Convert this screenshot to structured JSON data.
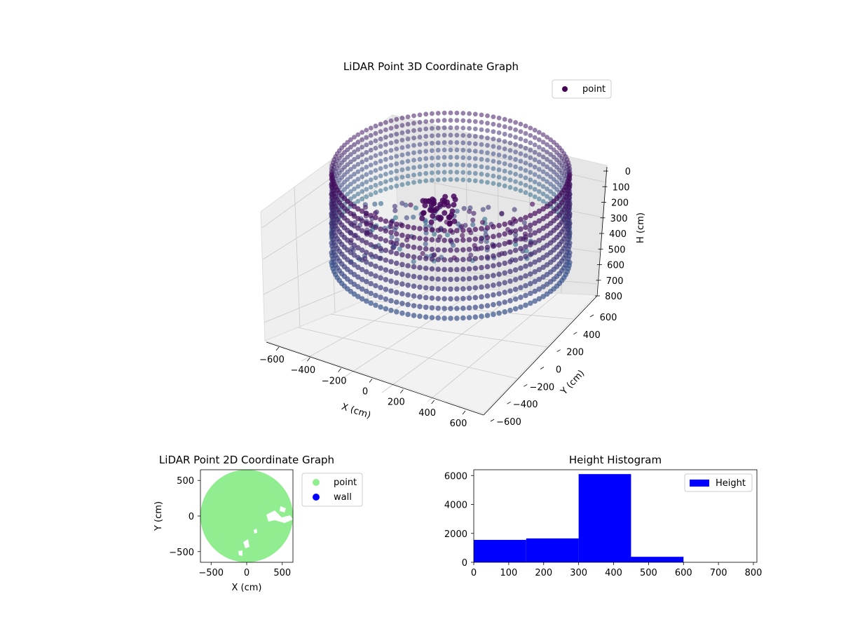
{
  "chart_data": [
    {
      "type": "scatter",
      "projection": "3d",
      "title": "LiDAR Point 3D Coordinate Graph",
      "xlabel": "X (cm)",
      "ylabel": "Y (cm)",
      "zlabel": "H (cm)",
      "xlim": [
        -600,
        600
      ],
      "ylim": [
        -600,
        600
      ],
      "zlim": [
        800,
        0
      ],
      "xticks": [
        "−600",
        "−400",
        "−200",
        "0",
        "200",
        "400",
        "600"
      ],
      "yticks": [
        "−600",
        "−400",
        "−200",
        "0",
        "200",
        "400",
        "600"
      ],
      "zticks": [
        "0",
        "100",
        "200",
        "300",
        "400",
        "500",
        "600",
        "700",
        "800"
      ],
      "legend": {
        "entries": [
          {
            "label": "point",
            "color": "#440154"
          }
        ],
        "placement": "upper-right"
      },
      "colormap": "viridis",
      "grid": true
    },
    {
      "type": "scatter",
      "title": "LiDAR Point 2D Coordinate Graph",
      "xlabel": "X (cm)",
      "ylabel": "Y (cm)",
      "xlim": [
        -650,
        650
      ],
      "ylim": [
        -650,
        650
      ],
      "xticks": [
        "−500",
        "0",
        "500"
      ],
      "yticks": [
        "−500",
        "0",
        "500"
      ],
      "series": [
        {
          "name": "point",
          "color": "#90ee90",
          "shape": "disc",
          "center": [
            0,
            0
          ],
          "radius": 650
        },
        {
          "name": "wall",
          "color": "#0000ff",
          "points": []
        }
      ],
      "legend_placement": "outside-right"
    },
    {
      "type": "bar",
      "title": "Height Histogram",
      "xlim": [
        0,
        810
      ],
      "ylim": [
        0,
        6400
      ],
      "xticks": [
        "0",
        "100",
        "200",
        "300",
        "400",
        "500",
        "600",
        "700",
        "800"
      ],
      "yticks": [
        "0",
        "2000",
        "4000",
        "6000"
      ],
      "bins": [
        {
          "x0": 0,
          "x1": 150,
          "count": 1550
        },
        {
          "x0": 150,
          "x1": 300,
          "count": 1650
        },
        {
          "x0": 300,
          "x1": 450,
          "count": 6100
        },
        {
          "x0": 450,
          "x1": 600,
          "count": 380
        },
        {
          "x0": 600,
          "x1": 750,
          "count": 0
        },
        {
          "x0": 750,
          "x1": 800,
          "count": 0
        }
      ],
      "series": [
        {
          "name": "Height",
          "color": "#0000ff"
        }
      ],
      "legend_placement": "upper-right"
    }
  ]
}
